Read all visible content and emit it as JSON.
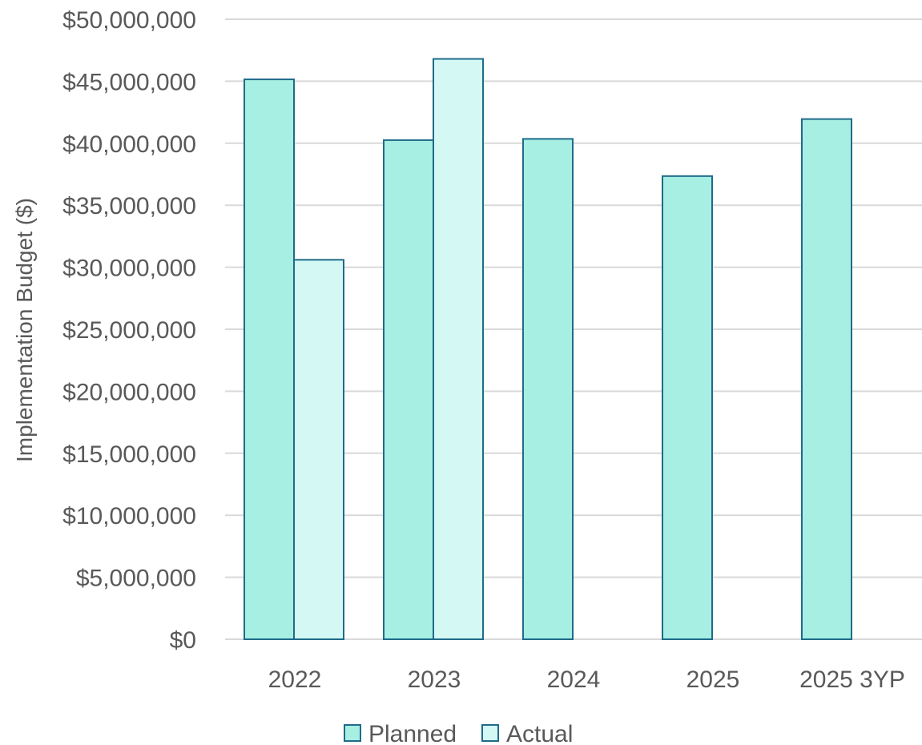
{
  "chart_data": {
    "type": "bar",
    "categories": [
      "2022",
      "2023",
      "2024",
      "2025",
      "2025 3YP"
    ],
    "series": [
      {
        "name": "Planned",
        "values": [
          45150000,
          40250000,
          40350000,
          37350000,
          41950000
        ]
      },
      {
        "name": "Actual",
        "values": [
          30600000,
          46800000,
          null,
          null,
          null
        ]
      }
    ],
    "title": "",
    "xlabel": "",
    "ylabel": "Implementation Budget ($)",
    "ylim": [
      0,
      50000000
    ],
    "yticks": [
      0,
      5000000,
      10000000,
      15000000,
      20000000,
      25000000,
      30000000,
      35000000,
      40000000,
      45000000,
      50000000
    ],
    "ytick_labels": [
      "$0",
      "$5,000,000",
      "$10,000,000",
      "$15,000,000",
      "$20,000,000",
      "$25,000,000",
      "$30,000,000",
      "$35,000,000",
      "$40,000,000",
      "$45,000,000",
      "$50,000,000"
    ],
    "grid": true,
    "legend": "bottom",
    "colors": {
      "Planned": "#a6efe2",
      "Actual": "#d4f8f3",
      "bar_stroke": "#1f6b8a",
      "grid": "#d9d9d9",
      "text": "#595959"
    }
  }
}
